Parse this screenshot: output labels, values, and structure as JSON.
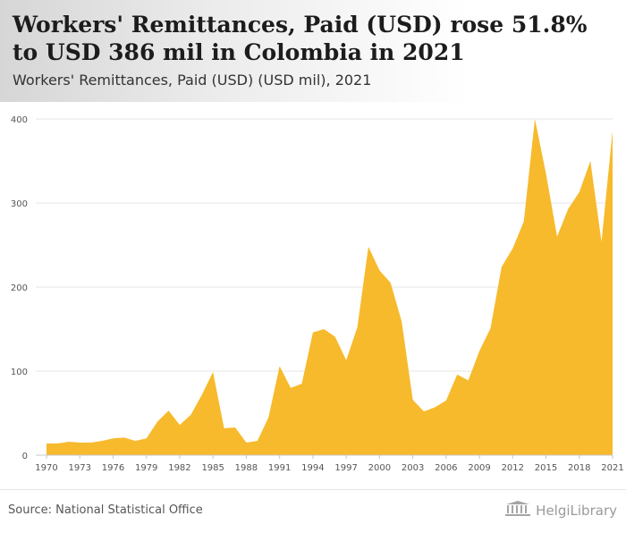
{
  "header": {
    "title": "Workers' Remittances, Paid (USD) rose 51.8% to USD 386 mil in Colombia in 2021",
    "subtitle": "Workers' Remittances, Paid (USD) (USD mil), 2021"
  },
  "footer": {
    "source": "Source: National Statistical Office",
    "brand": "HelgiLibrary"
  },
  "colors": {
    "area_fill": "#F7BA2C",
    "grid": "#e5e5e5"
  },
  "icons": {
    "brand_logo": "library-building-icon"
  },
  "chart_data": {
    "type": "area",
    "title": "Workers' Remittances, Paid (USD) rose 51.8% to USD 386 mil in Colombia in 2021",
    "subtitle": "Workers' Remittances, Paid (USD) (USD mil), 2021",
    "xlabel": "",
    "ylabel": "",
    "x": [
      1970,
      1971,
      1972,
      1973,
      1974,
      1975,
      1976,
      1977,
      1978,
      1979,
      1980,
      1981,
      1982,
      1983,
      1984,
      1985,
      1986,
      1987,
      1988,
      1989,
      1990,
      1991,
      1992,
      1993,
      1994,
      1995,
      1996,
      1997,
      1998,
      1999,
      2000,
      2001,
      2002,
      2003,
      2004,
      2005,
      2006,
      2007,
      2008,
      2009,
      2010,
      2011,
      2012,
      2013,
      2014,
      2015,
      2016,
      2017,
      2018,
      2019,
      2020,
      2021
    ],
    "values": [
      14,
      14,
      16,
      15,
      15,
      17,
      20,
      21,
      17,
      20,
      40,
      53,
      36,
      48,
      72,
      99,
      32,
      33,
      15,
      17,
      45,
      106,
      80,
      85,
      146,
      150,
      141,
      113,
      152,
      248,
      220,
      205,
      159,
      66,
      52,
      57,
      65,
      96,
      89,
      124,
      151,
      224,
      246,
      278,
      400,
      335,
      260,
      293,
      313,
      350,
      254,
      386
    ],
    "x_tick_labels": [
      "1970",
      "1973",
      "1976",
      "1979",
      "1982",
      "1985",
      "1988",
      "1991",
      "1994",
      "1997",
      "2000",
      "2003",
      "2006",
      "2009",
      "2012",
      "2015",
      "2018",
      "2021"
    ],
    "y_tick_labels": [
      "0",
      "100",
      "200",
      "300",
      "400"
    ],
    "ylim": [
      0,
      400
    ],
    "grid": true,
    "legend": "none"
  }
}
